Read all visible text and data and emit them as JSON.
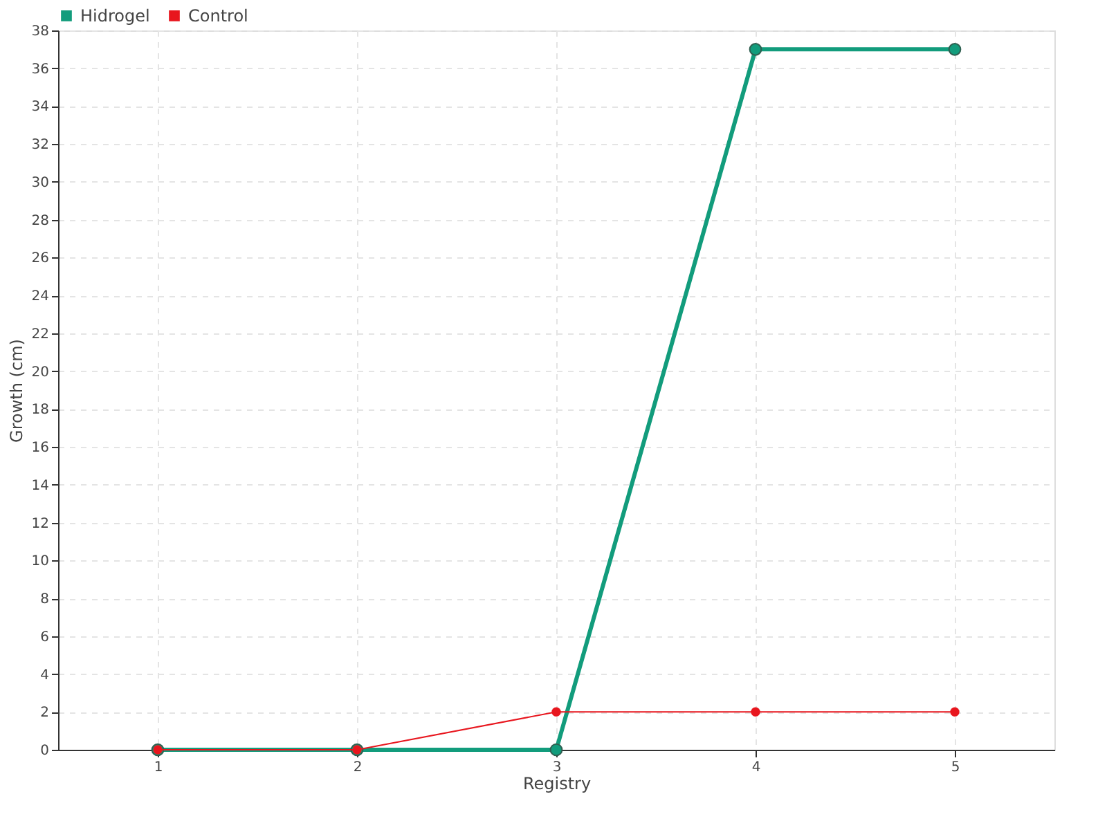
{
  "chart_data": {
    "type": "line",
    "xlabel": "Registry",
    "ylabel": "Growth (cm)",
    "x": [
      1,
      2,
      3,
      4,
      5
    ],
    "series": [
      {
        "name": "Hidrogel",
        "color": "#129c7c",
        "values": [
          0,
          0,
          0,
          37,
          37
        ]
      },
      {
        "name": "Control",
        "color": "#e8161e",
        "values": [
          0,
          0,
          2,
          2,
          2
        ]
      }
    ],
    "xlim": [
      0.5,
      5.5
    ],
    "xticks": [
      1,
      2,
      3,
      4,
      5
    ],
    "ylim": [
      0,
      38
    ],
    "yticks": [
      0,
      2,
      4,
      6,
      8,
      10,
      12,
      14,
      16,
      18,
      20,
      22,
      24,
      26,
      28,
      30,
      32,
      34,
      36,
      38
    ],
    "grid": true,
    "legend": "top left",
    "marker": "circle",
    "line_style": "solid"
  }
}
